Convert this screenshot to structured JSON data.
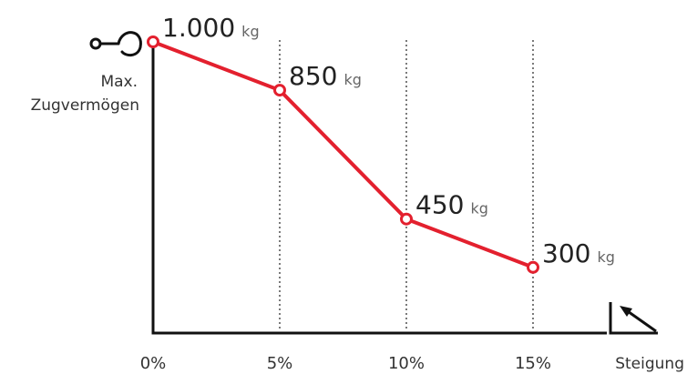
{
  "chart_data": {
    "type": "line",
    "x": [
      "0%",
      "5%",
      "10%",
      "15%"
    ],
    "values": [
      1000,
      850,
      450,
      300
    ],
    "data_labels": [
      {
        "value": "1.000",
        "unit": "kg"
      },
      {
        "value": "850",
        "unit": "kg"
      },
      {
        "value": "450",
        "unit": "kg"
      },
      {
        "value": "300",
        "unit": "kg"
      }
    ],
    "ylabel_lines": [
      "Max.",
      "Zugvermögen"
    ],
    "xlabel": "Steigung",
    "ylim": [
      0,
      1000
    ],
    "grid": "vertical dotted",
    "colors": {
      "series": "#e3202e",
      "axis": "#111111",
      "text": "#333333"
    },
    "icons": {
      "y_axis": "tow-hook-icon",
      "x_axis": "incline-slope-icon"
    }
  }
}
